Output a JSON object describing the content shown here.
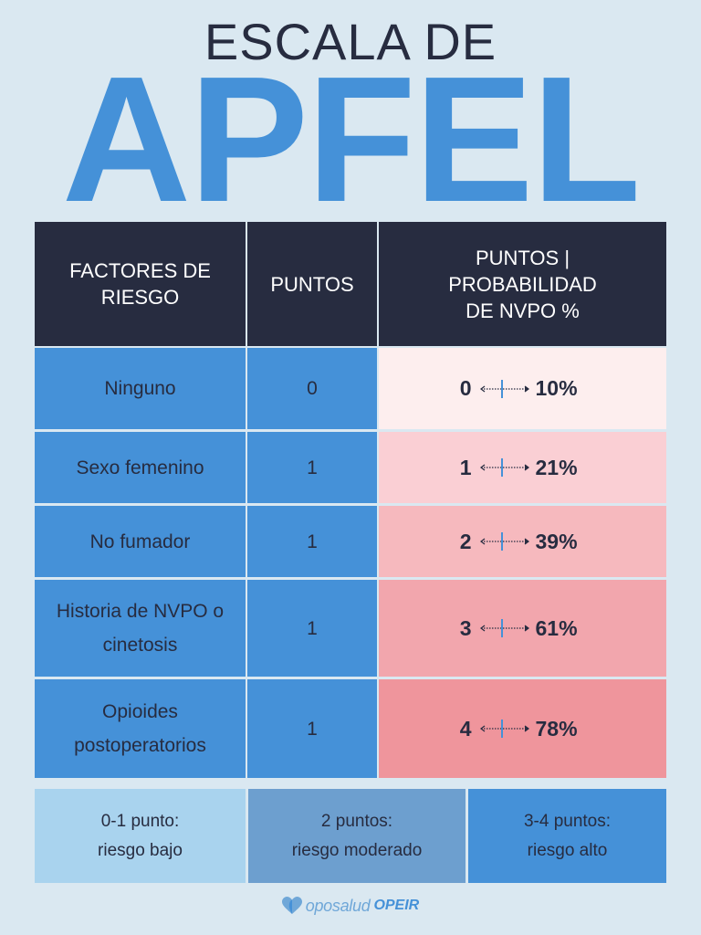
{
  "title": {
    "line1": "ESCALA DE",
    "line2": "APFEL"
  },
  "table": {
    "headers": {
      "factors": "FACTORES DE RIESGO",
      "points": "PUNTOS",
      "probability": "PUNTOS | PROBABILIDAD DE NVPO %"
    },
    "rows": [
      {
        "factor": "Ninguno",
        "points": "0",
        "score": "0",
        "probability": "10%",
        "color": "#fdeeee"
      },
      {
        "factor": "Sexo femenino",
        "points": "1",
        "score": "1",
        "probability": "21%",
        "color": "#facfd4"
      },
      {
        "factor": "No fumador",
        "points": "1",
        "score": "2",
        "probability": "39%",
        "color": "#f6b9be"
      },
      {
        "factor": "Historia de NVPO o cinetosis",
        "points": "1",
        "score": "3",
        "probability": "61%",
        "color": "#f2a6ad"
      },
      {
        "factor": "Opioides postoperatorios",
        "points": "1",
        "score": "4",
        "probability": "78%",
        "color": "#ef959c"
      }
    ]
  },
  "legend": [
    {
      "title": "0-1 punto:",
      "text": "riesgo bajo",
      "color": "#a9d3ee"
    },
    {
      "title": "2 puntos:",
      "text": "riesgo moderado",
      "color": "#6d9fcf"
    },
    {
      "title": "3-4 puntos:",
      "text": "riesgo alto",
      "color": "#4591d8"
    }
  ],
  "footer": {
    "brand": "oposalud",
    "brand_suffix": "OPEIR",
    "logo_icon": "heart-icon"
  },
  "colors": {
    "dark": "#272c40",
    "blue": "#4591d8",
    "background": "#dae8f1"
  }
}
